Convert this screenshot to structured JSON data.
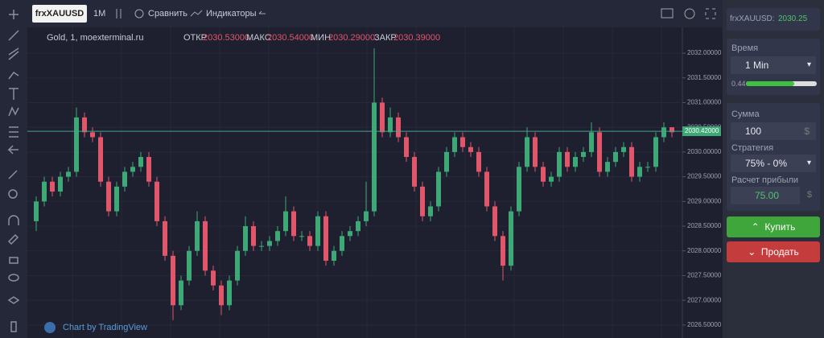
{
  "toolbar": {
    "symbol": "frxXAUUSD",
    "interval": "1M",
    "compare": "Сравнить",
    "indicators": "Индикаторы"
  },
  "legend": {
    "title": "Gold, 1, moexterminal.ru",
    "open_label": "ОТКР",
    "open": "2030.53000",
    "high_label": "МАКС",
    "high": "2030.54000",
    "low_label": "МИН",
    "low": "2030.29000",
    "close_label": "ЗАКР",
    "close": "2030.39000"
  },
  "footer": "Chart by TradingView",
  "chart_data": {
    "type": "candlestick",
    "ylim": [
      2026.4,
      2032.18
    ],
    "yticks": [
      {
        "value": 2026.5,
        "label": "2026.50000"
      },
      {
        "value": 2027,
        "label": "2027.00000"
      },
      {
        "value": 2027.5,
        "label": "2027.50000"
      },
      {
        "value": 2028,
        "label": "2028.00000"
      },
      {
        "value": 2028.5,
        "label": "2028.50000"
      },
      {
        "value": 2029,
        "label": "2029.00000"
      },
      {
        "value": 2029.5,
        "label": "2029.50000"
      },
      {
        "value": 2030,
        "label": "2030.00000"
      },
      {
        "value": 2030.5,
        "label": "2030.50000"
      },
      {
        "value": 2031,
        "label": "2031.00000"
      },
      {
        "value": 2031.5,
        "label": "2031.50000"
      },
      {
        "value": 2032,
        "label": "2032.00000"
      }
    ],
    "current_price": {
      "value": 2030.42,
      "label": "2030.42000"
    },
    "up_color": "#3fa877",
    "down_color": "#e0566a",
    "open": [
      2028.6,
      2029.0,
      2029.4,
      2029.2,
      2029.5,
      2029.6,
      2030.7,
      2030.4,
      2030.3,
      2029.4,
      2028.8,
      2029.3,
      2029.6,
      2029.7,
      2029.9,
      2029.4,
      2028.6,
      2027.9,
      2026.9,
      2027.4,
      2028.0,
      2028.6,
      2027.6,
      2027.3,
      2026.9,
      2027.4,
      2028.0,
      2028.5,
      2028.1,
      2028.1,
      2028.2,
      2028.4,
      2028.8,
      2028.3,
      2028.3,
      2028.1,
      2028.7,
      2027.8,
      2028.0,
      2028.3,
      2028.4,
      2028.6,
      2028.8,
      2031.0,
      2030.4,
      2030.7,
      2030.3,
      2029.9,
      2029.3,
      2028.7,
      2028.9,
      2029.6,
      2030.0,
      2030.3,
      2030.1,
      2030.0,
      2029.6,
      2028.9,
      2028.3,
      2027.7,
      2028.8,
      2029.7,
      2030.3,
      2029.7,
      2029.4,
      2029.5,
      2030.0,
      2029.7,
      2029.9,
      2030.0,
      2030.4,
      2029.6,
      2029.8,
      2030.0,
      2030.1,
      2029.5,
      2029.7,
      2029.7,
      2030.3,
      2030.5
    ],
    "high": [
      2029.1,
      2029.5,
      2029.5,
      2029.6,
      2029.7,
      2030.9,
      2030.8,
      2030.5,
      2030.4,
      2029.5,
      2029.4,
      2029.7,
      2029.8,
      2030.0,
      2030.0,
      2029.5,
      2028.7,
      2028.0,
      2027.5,
      2028.1,
      2028.8,
      2028.7,
      2027.7,
      2027.4,
      2027.5,
      2028.1,
      2028.7,
      2028.6,
      2028.2,
      2028.3,
      2028.5,
      2029.1,
      2028.9,
      2028.4,
      2028.4,
      2028.8,
      2028.8,
      2028.1,
      2028.4,
      2028.5,
      2028.7,
      2029.4,
      2032.1,
      2031.1,
      2030.9,
      2030.8,
      2030.4,
      2030.0,
      2029.4,
      2029.0,
      2029.7,
      2030.1,
      2030.4,
      2030.4,
      2030.2,
      2030.1,
      2029.7,
      2029.0,
      2028.4,
      2028.9,
      2029.8,
      2030.5,
      2030.4,
      2029.8,
      2029.6,
      2030.1,
      2030.1,
      2030.0,
      2030.1,
      2030.6,
      2030.5,
      2029.9,
      2030.1,
      2030.2,
      2030.2,
      2029.8,
      2029.8,
      2030.4,
      2030.6,
      2030.5
    ],
    "low": [
      2028.4,
      2028.9,
      2029.1,
      2029.1,
      2029.4,
      2029.5,
      2030.3,
      2030.2,
      2029.3,
      2028.7,
      2028.7,
      2029.2,
      2029.5,
      2029.6,
      2029.3,
      2028.5,
      2027.8,
      2026.6,
      2026.8,
      2027.3,
      2027.9,
      2027.5,
      2027.2,
      2026.7,
      2026.8,
      2027.3,
      2027.9,
      2028.0,
      2028.0,
      2028.0,
      2028.1,
      2028.3,
      2028.2,
      2028.2,
      2028.0,
      2028.0,
      2027.7,
      2027.7,
      2027.9,
      2028.2,
      2028.3,
      2028.5,
      2028.7,
      2030.3,
      2030.3,
      2030.2,
      2029.8,
      2029.2,
      2028.6,
      2028.6,
      2028.8,
      2029.5,
      2029.9,
      2030.0,
      2029.9,
      2029.5,
      2028.8,
      2028.2,
      2027.4,
      2027.6,
      2028.7,
      2029.6,
      2029.6,
      2029.3,
      2029.3,
      2029.4,
      2029.6,
      2029.6,
      2029.8,
      2029.9,
      2029.5,
      2029.5,
      2029.7,
      2029.9,
      2029.4,
      2029.4,
      2029.6,
      2029.6,
      2030.2,
      2030.3
    ],
    "close": [
      2029.0,
      2029.4,
      2029.2,
      2029.5,
      2029.6,
      2030.7,
      2030.4,
      2030.3,
      2029.4,
      2028.8,
      2029.3,
      2029.6,
      2029.7,
      2029.9,
      2029.4,
      2028.6,
      2027.9,
      2026.9,
      2027.4,
      2028.0,
      2028.6,
      2027.6,
      2027.3,
      2026.9,
      2027.4,
      2028.0,
      2028.5,
      2028.1,
      2028.1,
      2028.2,
      2028.4,
      2028.8,
      2028.3,
      2028.3,
      2028.1,
      2028.7,
      2027.8,
      2028.0,
      2028.3,
      2028.4,
      2028.6,
      2028.8,
      2031.0,
      2030.4,
      2030.7,
      2030.3,
      2029.9,
      2029.3,
      2028.7,
      2028.9,
      2029.6,
      2030.0,
      2030.3,
      2030.1,
      2030.0,
      2029.6,
      2028.9,
      2028.3,
      2027.7,
      2028.8,
      2029.7,
      2030.3,
      2029.7,
      2029.4,
      2029.5,
      2030.0,
      2029.7,
      2029.9,
      2030.0,
      2030.4,
      2029.6,
      2029.8,
      2030.0,
      2030.1,
      2029.5,
      2029.7,
      2029.7,
      2030.3,
      2030.5,
      2030.4
    ]
  },
  "panel": {
    "ticker_label": "frxXAUUSD:",
    "ticker_price": "2030.25",
    "time_label": "Время",
    "time_value": "1 Min",
    "progress_label": "0.44",
    "amount_label": "Сумма",
    "amount_value": "100",
    "amount_unit": "$",
    "strategy_label": "Стратегия",
    "strategy_value": "75% - 0%",
    "profit_label": "Расчет прибыли",
    "profit_value": "75.00",
    "profit_unit": "$",
    "buy": "Купить",
    "sell": "Продать"
  }
}
